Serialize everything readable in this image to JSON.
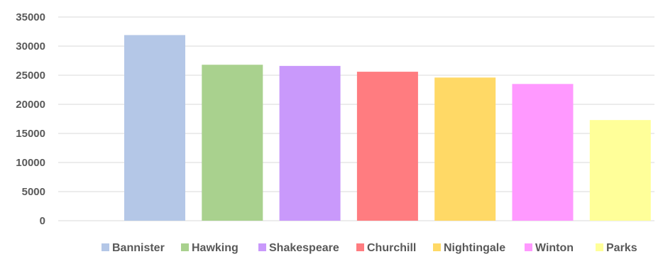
{
  "chart_data": {
    "type": "bar",
    "title": "",
    "xlabel": "",
    "ylabel": "",
    "categories": [
      "Bannister",
      "Hawking",
      "Shakespeare",
      "Churchill",
      "Nightingale",
      "Winton",
      "Parks"
    ],
    "series": [
      {
        "name": "",
        "values": [
          31900,
          26800,
          26600,
          25600,
          24600,
          23500,
          17300
        ]
      }
    ],
    "colors": [
      "#b4c7e7",
      "#a9d18e",
      "#c999fb",
      "#ff7c80",
      "#ffd966",
      "#ff99ff",
      "#ffff99"
    ],
    "ylim": [
      0,
      35000
    ],
    "yticks": [
      "0",
      "5000",
      "10000",
      "15000",
      "20000",
      "25000",
      "30000",
      "35000"
    ],
    "grid": true,
    "legend_position": "bottom",
    "legend_entries": [
      "Bannister",
      "Hawking",
      "Shakespeare",
      "Churchill",
      "Nightingale",
      "Winton",
      "Parks"
    ]
  }
}
